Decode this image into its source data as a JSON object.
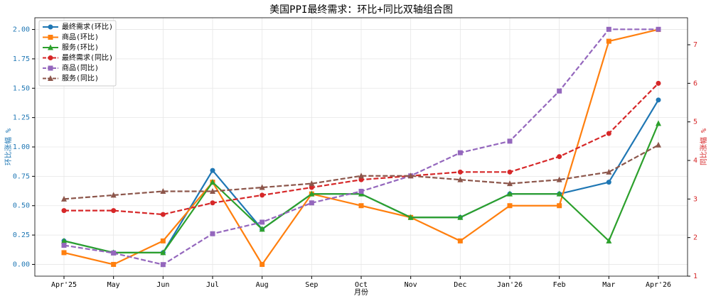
{
  "chart_data": {
    "type": "line",
    "title": "美国PPI最终需求：环比+同比双轴组合图",
    "x_label": "月份",
    "y_label": "环比涨幅 %",
    "y2_label": "同比涨幅 %",
    "categories": [
      "Apr'25",
      "May",
      "Jun",
      "Jul",
      "Aug",
      "Sep",
      "Oct",
      "Nov",
      "Dec",
      "Jan'26",
      "Feb",
      "Mar",
      "Apr'26"
    ],
    "ylim": [
      -0.1,
      2.1
    ],
    "yticks": [
      {
        "value": 0,
        "label": "0.00"
      },
      {
        "value": 0.25,
        "label": "0.25"
      },
      {
        "value": 0.5,
        "label": "0.50"
      },
      {
        "value": 0.75,
        "label": "0.75"
      },
      {
        "value": 1,
        "label": "1.00"
      },
      {
        "value": 1.25,
        "label": "1.25"
      },
      {
        "value": 1.5,
        "label": "1.50"
      },
      {
        "value": 1.75,
        "label": "1.75"
      },
      {
        "value": 2,
        "label": "2.00"
      }
    ],
    "y2lim": [
      1.0,
      7.7
    ],
    "y2ticks": [
      1,
      2,
      3,
      4,
      5,
      6,
      7
    ],
    "grid": true,
    "legend": "upper left",
    "y_color": "#1f77b4",
    "y2_color": "#d62728",
    "series": [
      {
        "name": "最终需求(环比)",
        "color": "#1f77b4",
        "marker": "circle",
        "style": "solid",
        "values": [
          0.2,
          0.1,
          0.1,
          0.8,
          0.3,
          0.6,
          0.6,
          0.4,
          0.4,
          0.6,
          0.6,
          0.7,
          1.4
        ]
      },
      {
        "name": "商品(环比)",
        "color": "#ff7f0e",
        "marker": "square",
        "style": "solid",
        "values": [
          0.1,
          0.0,
          0.2,
          0.7,
          0.0,
          0.6,
          0.5,
          0.4,
          0.2,
          0.5,
          0.5,
          1.9,
          2.0
        ]
      },
      {
        "name": "服务(环比)",
        "color": "#2ca02c",
        "marker": "triangle",
        "style": "solid",
        "values": [
          0.2,
          0.1,
          0.1,
          0.7,
          0.3,
          0.6,
          0.6,
          0.4,
          0.4,
          0.6,
          0.6,
          0.2,
          1.2
        ]
      },
      {
        "name": "最终需求(同比)",
        "color": "#d62728",
        "marker": "circle",
        "style": "dashed",
        "axis": "y2",
        "values": [
          2.7,
          2.7,
          2.6,
          2.9,
          3.1,
          3.3,
          3.5,
          3.6,
          3.7,
          3.7,
          4.1,
          4.7,
          6.0
        ]
      },
      {
        "name": "商品(同比)",
        "color": "#9467bd",
        "marker": "square",
        "style": "dashed",
        "axis": "y2",
        "values": [
          1.8,
          1.6,
          1.3,
          2.1,
          2.4,
          2.9,
          3.2,
          3.6,
          4.2,
          4.5,
          5.8,
          7.4,
          7.4
        ]
      },
      {
        "name": "服务(同比)",
        "color": "#8c564b",
        "marker": "triangle",
        "style": "dashed",
        "axis": "y2",
        "values": [
          3.0,
          3.1,
          3.2,
          3.2,
          3.3,
          3.4,
          3.6,
          3.6,
          3.5,
          3.4,
          3.5,
          3.7,
          4.4
        ]
      }
    ]
  }
}
